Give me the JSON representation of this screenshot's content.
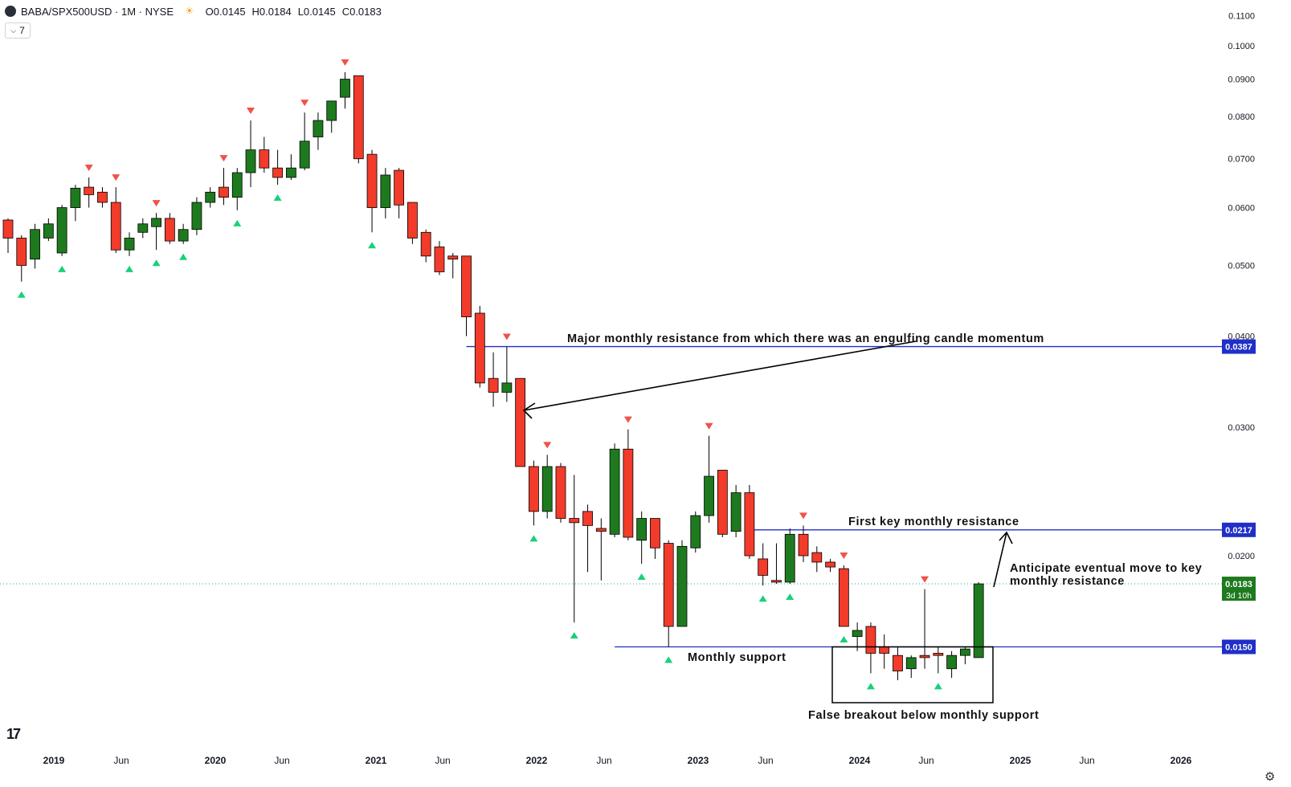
{
  "header": {
    "symbol": "BABA/SPX500USD · 1M · NYSE",
    "open": "O0.0145",
    "high": "H0.0184",
    "low": "L0.0145",
    "close": "C0.0183",
    "indicator_badge": "7",
    "sun_icon": "sun-icon"
  },
  "colors": {
    "up": "#1e7a1e",
    "down": "#f23b2a",
    "level_line": "#1f2fc8",
    "marker_up": "#19d07a",
    "marker_down": "#f0524a",
    "last_price": "#1e7a1e"
  },
  "price_axis": {
    "scale": "log",
    "ticks": [
      "0.1100",
      "0.1000",
      "0.0900",
      "0.0800",
      "0.0700",
      "0.0600",
      "0.0500",
      "0.0400",
      "0.0300",
      "0.0200"
    ]
  },
  "time_axis": {
    "labels": [
      "2019",
      "Jun",
      "2020",
      "Jun",
      "2021",
      "Jun",
      "2022",
      "Jun",
      "2023",
      "Jun",
      "2024",
      "Jun",
      "2025",
      "Jun",
      "2026"
    ]
  },
  "price_tags": [
    {
      "label": "0.0387"
    },
    {
      "label": "0.0217"
    },
    {
      "label": "0.0150"
    },
    {
      "label": "0.0183",
      "sub": "3d 10h"
    }
  ],
  "annotations": [
    "Major monthly resistance from which there was an engulfing candle momentum",
    "First key monthly resistance",
    "Anticipate eventual move to key",
    "monthly resistance",
    "Monthly support",
    "False breakout below monthly support"
  ],
  "chart_data": {
    "type": "candlestick",
    "title": "BABA/SPX500USD · 1M · NYSE",
    "y_scale": "log",
    "ylim": [
      0.0125,
      0.112
    ],
    "levels": [
      {
        "value": 0.0387,
        "from": "2021-10"
      },
      {
        "value": 0.0217,
        "from": "2023-07"
      },
      {
        "value": 0.015,
        "from": "2022-09"
      }
    ],
    "candles": [
      {
        "t": "2018-12",
        "o": 0.0577,
        "h": 0.058,
        "l": 0.052,
        "c": 0.0545
      },
      {
        "t": "2019-01",
        "o": 0.0545,
        "h": 0.055,
        "l": 0.0475,
        "c": 0.05
      },
      {
        "t": "2019-02",
        "o": 0.051,
        "h": 0.057,
        "l": 0.0495,
        "c": 0.056
      },
      {
        "t": "2019-03",
        "o": 0.0545,
        "h": 0.058,
        "l": 0.054,
        "c": 0.057
      },
      {
        "t": "2019-04",
        "o": 0.052,
        "h": 0.0605,
        "l": 0.0515,
        "c": 0.06
      },
      {
        "t": "2019-05",
        "o": 0.06,
        "h": 0.0645,
        "l": 0.0575,
        "c": 0.0638
      },
      {
        "t": "2019-06",
        "o": 0.064,
        "h": 0.066,
        "l": 0.06,
        "c": 0.0625
      },
      {
        "t": "2019-07",
        "o": 0.063,
        "h": 0.064,
        "l": 0.06,
        "c": 0.061
      },
      {
        "t": "2019-08",
        "o": 0.061,
        "h": 0.064,
        "l": 0.052,
        "c": 0.0525
      },
      {
        "t": "2019-09",
        "o": 0.0525,
        "h": 0.0555,
        "l": 0.0515,
        "c": 0.0545
      },
      {
        "t": "2019-10",
        "o": 0.0555,
        "h": 0.058,
        "l": 0.0545,
        "c": 0.057
      },
      {
        "t": "2019-11",
        "o": 0.0565,
        "h": 0.059,
        "l": 0.0525,
        "c": 0.058
      },
      {
        "t": "2019-12",
        "o": 0.058,
        "h": 0.059,
        "l": 0.0535,
        "c": 0.054
      },
      {
        "t": "2020-01",
        "o": 0.054,
        "h": 0.057,
        "l": 0.0535,
        "c": 0.056
      },
      {
        "t": "2020-02",
        "o": 0.056,
        "h": 0.062,
        "l": 0.055,
        "c": 0.061
      },
      {
        "t": "2020-03",
        "o": 0.061,
        "h": 0.064,
        "l": 0.06,
        "c": 0.063
      },
      {
        "t": "2020-04",
        "o": 0.064,
        "h": 0.068,
        "l": 0.0605,
        "c": 0.062
      },
      {
        "t": "2020-05",
        "o": 0.062,
        "h": 0.068,
        "l": 0.0595,
        "c": 0.067
      },
      {
        "t": "2020-06",
        "o": 0.067,
        "h": 0.079,
        "l": 0.064,
        "c": 0.072
      },
      {
        "t": "2020-07",
        "o": 0.072,
        "h": 0.075,
        "l": 0.067,
        "c": 0.068
      },
      {
        "t": "2020-08",
        "o": 0.068,
        "h": 0.072,
        "l": 0.0645,
        "c": 0.066
      },
      {
        "t": "2020-09",
        "o": 0.066,
        "h": 0.071,
        "l": 0.0655,
        "c": 0.068
      },
      {
        "t": "2020-10",
        "o": 0.068,
        "h": 0.081,
        "l": 0.0675,
        "c": 0.074
      },
      {
        "t": "2020-11",
        "o": 0.075,
        "h": 0.081,
        "l": 0.072,
        "c": 0.079
      },
      {
        "t": "2020-12",
        "o": 0.079,
        "h": 0.084,
        "l": 0.076,
        "c": 0.084
      },
      {
        "t": "2021-01",
        "o": 0.085,
        "h": 0.092,
        "l": 0.082,
        "c": 0.09
      },
      {
        "t": "2021-02",
        "o": 0.091,
        "h": 0.091,
        "l": 0.069,
        "c": 0.07
      },
      {
        "t": "2021-03",
        "o": 0.071,
        "h": 0.072,
        "l": 0.0555,
        "c": 0.06
      },
      {
        "t": "2021-04",
        "o": 0.06,
        "h": 0.068,
        "l": 0.058,
        "c": 0.0665
      },
      {
        "t": "2021-05",
        "o": 0.0675,
        "h": 0.068,
        "l": 0.058,
        "c": 0.0605
      },
      {
        "t": "2021-06",
        "o": 0.061,
        "h": 0.061,
        "l": 0.0535,
        "c": 0.0545
      },
      {
        "t": "2021-07",
        "o": 0.0555,
        "h": 0.056,
        "l": 0.0505,
        "c": 0.0515
      },
      {
        "t": "2021-08",
        "o": 0.053,
        "h": 0.054,
        "l": 0.0485,
        "c": 0.049
      },
      {
        "t": "2021-09",
        "o": 0.0515,
        "h": 0.052,
        "l": 0.048,
        "c": 0.051
      },
      {
        "t": "2021-10",
        "o": 0.0515,
        "h": 0.0515,
        "l": 0.04,
        "c": 0.0425
      },
      {
        "t": "2021-11",
        "o": 0.043,
        "h": 0.044,
        "l": 0.034,
        "c": 0.0345
      },
      {
        "t": "2021-12",
        "o": 0.035,
        "h": 0.038,
        "l": 0.032,
        "c": 0.0335
      },
      {
        "t": "2022-01",
        "o": 0.0335,
        "h": 0.0387,
        "l": 0.0325,
        "c": 0.0345
      },
      {
        "t": "2022-02",
        "o": 0.035,
        "h": 0.035,
        "l": 0.0265,
        "c": 0.0265
      },
      {
        "t": "2022-03",
        "o": 0.0265,
        "h": 0.027,
        "l": 0.022,
        "c": 0.023
      },
      {
        "t": "2022-04",
        "o": 0.023,
        "h": 0.0275,
        "l": 0.0225,
        "c": 0.0265
      },
      {
        "t": "2022-05",
        "o": 0.0265,
        "h": 0.0268,
        "l": 0.0222,
        "c": 0.0225
      },
      {
        "t": "2022-06",
        "o": 0.0225,
        "h": 0.0258,
        "l": 0.0162,
        "c": 0.0222
      },
      {
        "t": "2022-07",
        "o": 0.023,
        "h": 0.0235,
        "l": 0.019,
        "c": 0.022
      },
      {
        "t": "2022-08",
        "o": 0.0218,
        "h": 0.0225,
        "l": 0.0185,
        "c": 0.0216
      },
      {
        "t": "2022-09",
        "o": 0.0214,
        "h": 0.0285,
        "l": 0.0212,
        "c": 0.028
      },
      {
        "t": "2022-10",
        "o": 0.028,
        "h": 0.0298,
        "l": 0.021,
        "c": 0.0212
      },
      {
        "t": "2022-11",
        "o": 0.021,
        "h": 0.023,
        "l": 0.0195,
        "c": 0.0225
      },
      {
        "t": "2022-12",
        "o": 0.0225,
        "h": 0.0225,
        "l": 0.0198,
        "c": 0.0205
      },
      {
        "t": "2023-01",
        "o": 0.0208,
        "h": 0.021,
        "l": 0.015,
        "c": 0.016
      },
      {
        "t": "2023-02",
        "o": 0.016,
        "h": 0.021,
        "l": 0.016,
        "c": 0.0206
      },
      {
        "t": "2023-03",
        "o": 0.0205,
        "h": 0.023,
        "l": 0.0202,
        "c": 0.0227
      },
      {
        "t": "2023-04",
        "o": 0.0227,
        "h": 0.0292,
        "l": 0.0222,
        "c": 0.0257
      },
      {
        "t": "2023-05",
        "o": 0.0262,
        "h": 0.0262,
        "l": 0.0212,
        "c": 0.0214
      },
      {
        "t": "2023-06",
        "o": 0.0216,
        "h": 0.025,
        "l": 0.0212,
        "c": 0.0244
      },
      {
        "t": "2023-07",
        "o": 0.0244,
        "h": 0.025,
        "l": 0.0198,
        "c": 0.02
      },
      {
        "t": "2023-08",
        "o": 0.0198,
        "h": 0.0208,
        "l": 0.0182,
        "c": 0.0188
      },
      {
        "t": "2023-09",
        "o": 0.0185,
        "h": 0.0208,
        "l": 0.0183,
        "c": 0.0184
      },
      {
        "t": "2023-10",
        "o": 0.0184,
        "h": 0.0218,
        "l": 0.0183,
        "c": 0.0214
      },
      {
        "t": "2023-11",
        "o": 0.0214,
        "h": 0.022,
        "l": 0.0196,
        "c": 0.02
      },
      {
        "t": "2023-12",
        "o": 0.0202,
        "h": 0.0206,
        "l": 0.019,
        "c": 0.0196
      },
      {
        "t": "2024-01",
        "o": 0.0196,
        "h": 0.0198,
        "l": 0.019,
        "c": 0.0193
      },
      {
        "t": "2024-02",
        "o": 0.0192,
        "h": 0.0194,
        "l": 0.016,
        "c": 0.016
      },
      {
        "t": "2024-03",
        "o": 0.0155,
        "h": 0.0162,
        "l": 0.0148,
        "c": 0.0158
      },
      {
        "t": "2024-04",
        "o": 0.016,
        "h": 0.0162,
        "l": 0.0138,
        "c": 0.0147
      },
      {
        "t": "2024-05",
        "o": 0.015,
        "h": 0.0156,
        "l": 0.014,
        "c": 0.0147
      },
      {
        "t": "2024-06",
        "o": 0.0146,
        "h": 0.015,
        "l": 0.0135,
        "c": 0.0139
      },
      {
        "t": "2024-07",
        "o": 0.014,
        "h": 0.0146,
        "l": 0.0136,
        "c": 0.0145
      },
      {
        "t": "2024-08",
        "o": 0.0146,
        "h": 0.018,
        "l": 0.014,
        "c": 0.0145
      },
      {
        "t": "2024-09",
        "o": 0.0147,
        "h": 0.015,
        "l": 0.0138,
        "c": 0.0146
      },
      {
        "t": "2024-10",
        "o": 0.014,
        "h": 0.0148,
        "l": 0.0136,
        "c": 0.0146
      },
      {
        "t": "2024-11",
        "o": 0.0146,
        "h": 0.015,
        "l": 0.0142,
        "c": 0.0149
      },
      {
        "t": "2024-12",
        "o": 0.0145,
        "h": 0.0184,
        "l": 0.0145,
        "c": 0.0183
      }
    ],
    "swing_markers": [
      {
        "t": "2019-01",
        "dir": "up"
      },
      {
        "t": "2019-04",
        "dir": "up"
      },
      {
        "t": "2019-06",
        "dir": "down"
      },
      {
        "t": "2019-08",
        "dir": "down"
      },
      {
        "t": "2019-09",
        "dir": "up"
      },
      {
        "t": "2019-11",
        "dir": "up"
      },
      {
        "t": "2019-11",
        "dir": "down"
      },
      {
        "t": "2020-01",
        "dir": "up"
      },
      {
        "t": "2020-04",
        "dir": "down"
      },
      {
        "t": "2020-05",
        "dir": "up"
      },
      {
        "t": "2020-06",
        "dir": "down"
      },
      {
        "t": "2020-08",
        "dir": "up"
      },
      {
        "t": "2020-10",
        "dir": "down"
      },
      {
        "t": "2021-01",
        "dir": "down"
      },
      {
        "t": "2021-03",
        "dir": "up"
      },
      {
        "t": "2022-01",
        "dir": "down"
      },
      {
        "t": "2022-03",
        "dir": "up"
      },
      {
        "t": "2022-04",
        "dir": "down"
      },
      {
        "t": "2022-06",
        "dir": "up"
      },
      {
        "t": "2022-10",
        "dir": "down"
      },
      {
        "t": "2022-11",
        "dir": "up"
      },
      {
        "t": "2023-01",
        "dir": "up"
      },
      {
        "t": "2023-04",
        "dir": "down"
      },
      {
        "t": "2023-08",
        "dir": "up"
      },
      {
        "t": "2023-10",
        "dir": "up"
      },
      {
        "t": "2023-11",
        "dir": "down"
      },
      {
        "t": "2024-02",
        "dir": "up"
      },
      {
        "t": "2024-02",
        "dir": "down"
      },
      {
        "t": "2024-04",
        "dir": "up"
      },
      {
        "t": "2024-08",
        "dir": "down"
      },
      {
        "t": "2024-09",
        "dir": "up"
      }
    ],
    "last_price": 0.0183,
    "grid": false
  }
}
